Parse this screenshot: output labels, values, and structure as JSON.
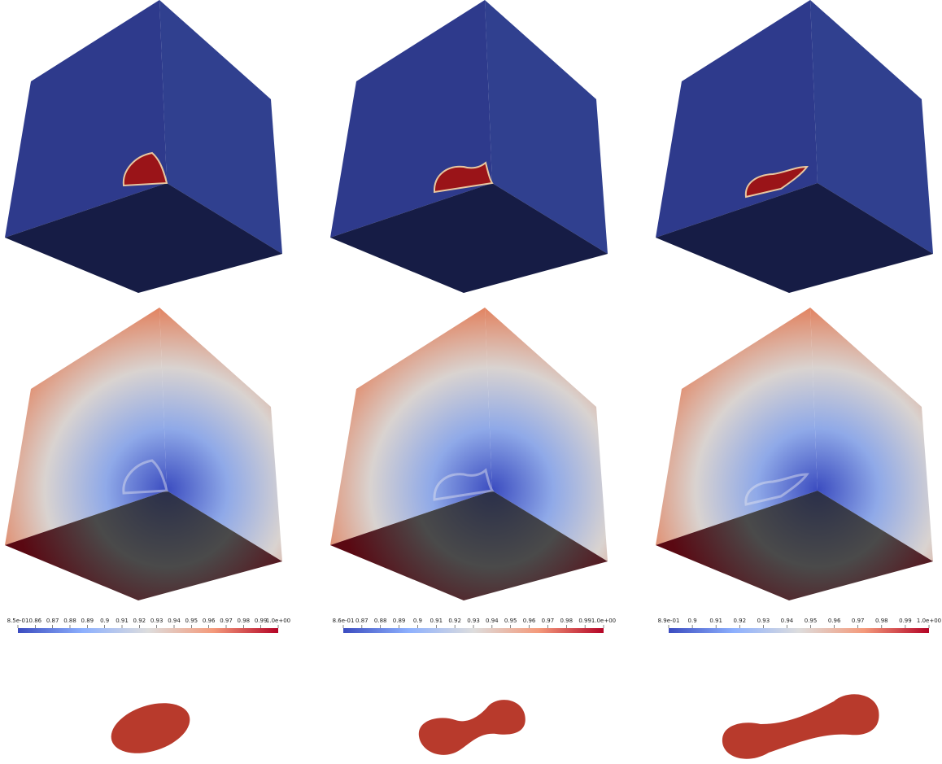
{
  "colorbars": [
    {
      "ticks": [
        "8.5e-01",
        "0.86",
        "0.87",
        "0.88",
        "0.89",
        "0.9",
        "0.91",
        "0.92",
        "0.93",
        "0.94",
        "0.95",
        "0.96",
        "0.97",
        "0.98",
        "0.99",
        "1.0e+00"
      ]
    },
    {
      "ticks": [
        "8.6e-01",
        "0.87",
        "0.88",
        "0.89",
        "0.9",
        "0.91",
        "0.92",
        "0.93",
        "0.94",
        "0.95",
        "0.96",
        "0.97",
        "0.98",
        "0.99",
        "1.0e+00"
      ]
    },
    {
      "ticks": [
        "8.9e-01",
        "0.9",
        "0.91",
        "0.92",
        "0.93",
        "0.94",
        "0.95",
        "0.96",
        "0.97",
        "0.98",
        "0.99",
        "1.0e+00"
      ]
    }
  ]
}
